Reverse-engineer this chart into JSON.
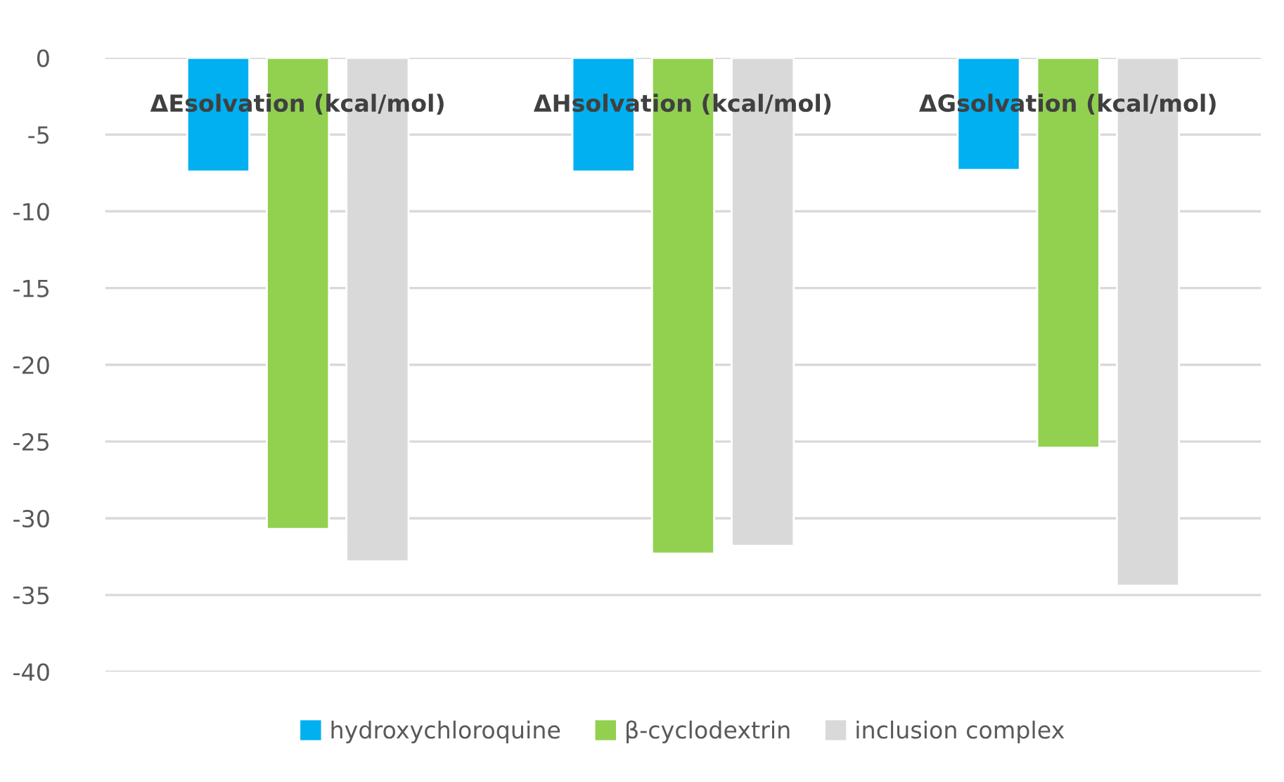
{
  "chart_data": {
    "type": "bar",
    "categories": [
      "ΔEsolvation (kcal/mol)",
      "ΔHsolvation (kcal/mol)",
      "ΔGsolvation (kcal/mol)"
    ],
    "series": [
      {
        "name": "hydroxychloroquine",
        "color": "#00b0f0",
        "values": [
          -7.4,
          -7.4,
          -7.3
        ]
      },
      {
        "name": "β-cyclodextrin",
        "color": "#92d050",
        "values": [
          -30.7,
          -32.3,
          -25.4
        ]
      },
      {
        "name": "inclusion complex",
        "color": "#d9d9d9",
        "values": [
          -32.8,
          -31.8,
          -34.4
        ]
      }
    ],
    "ylim": [
      -40,
      0
    ],
    "yticks": [
      -40,
      -35,
      -30,
      -25,
      -20,
      -15,
      -10,
      -5,
      0
    ],
    "grid": "y",
    "legend": "bottom"
  }
}
